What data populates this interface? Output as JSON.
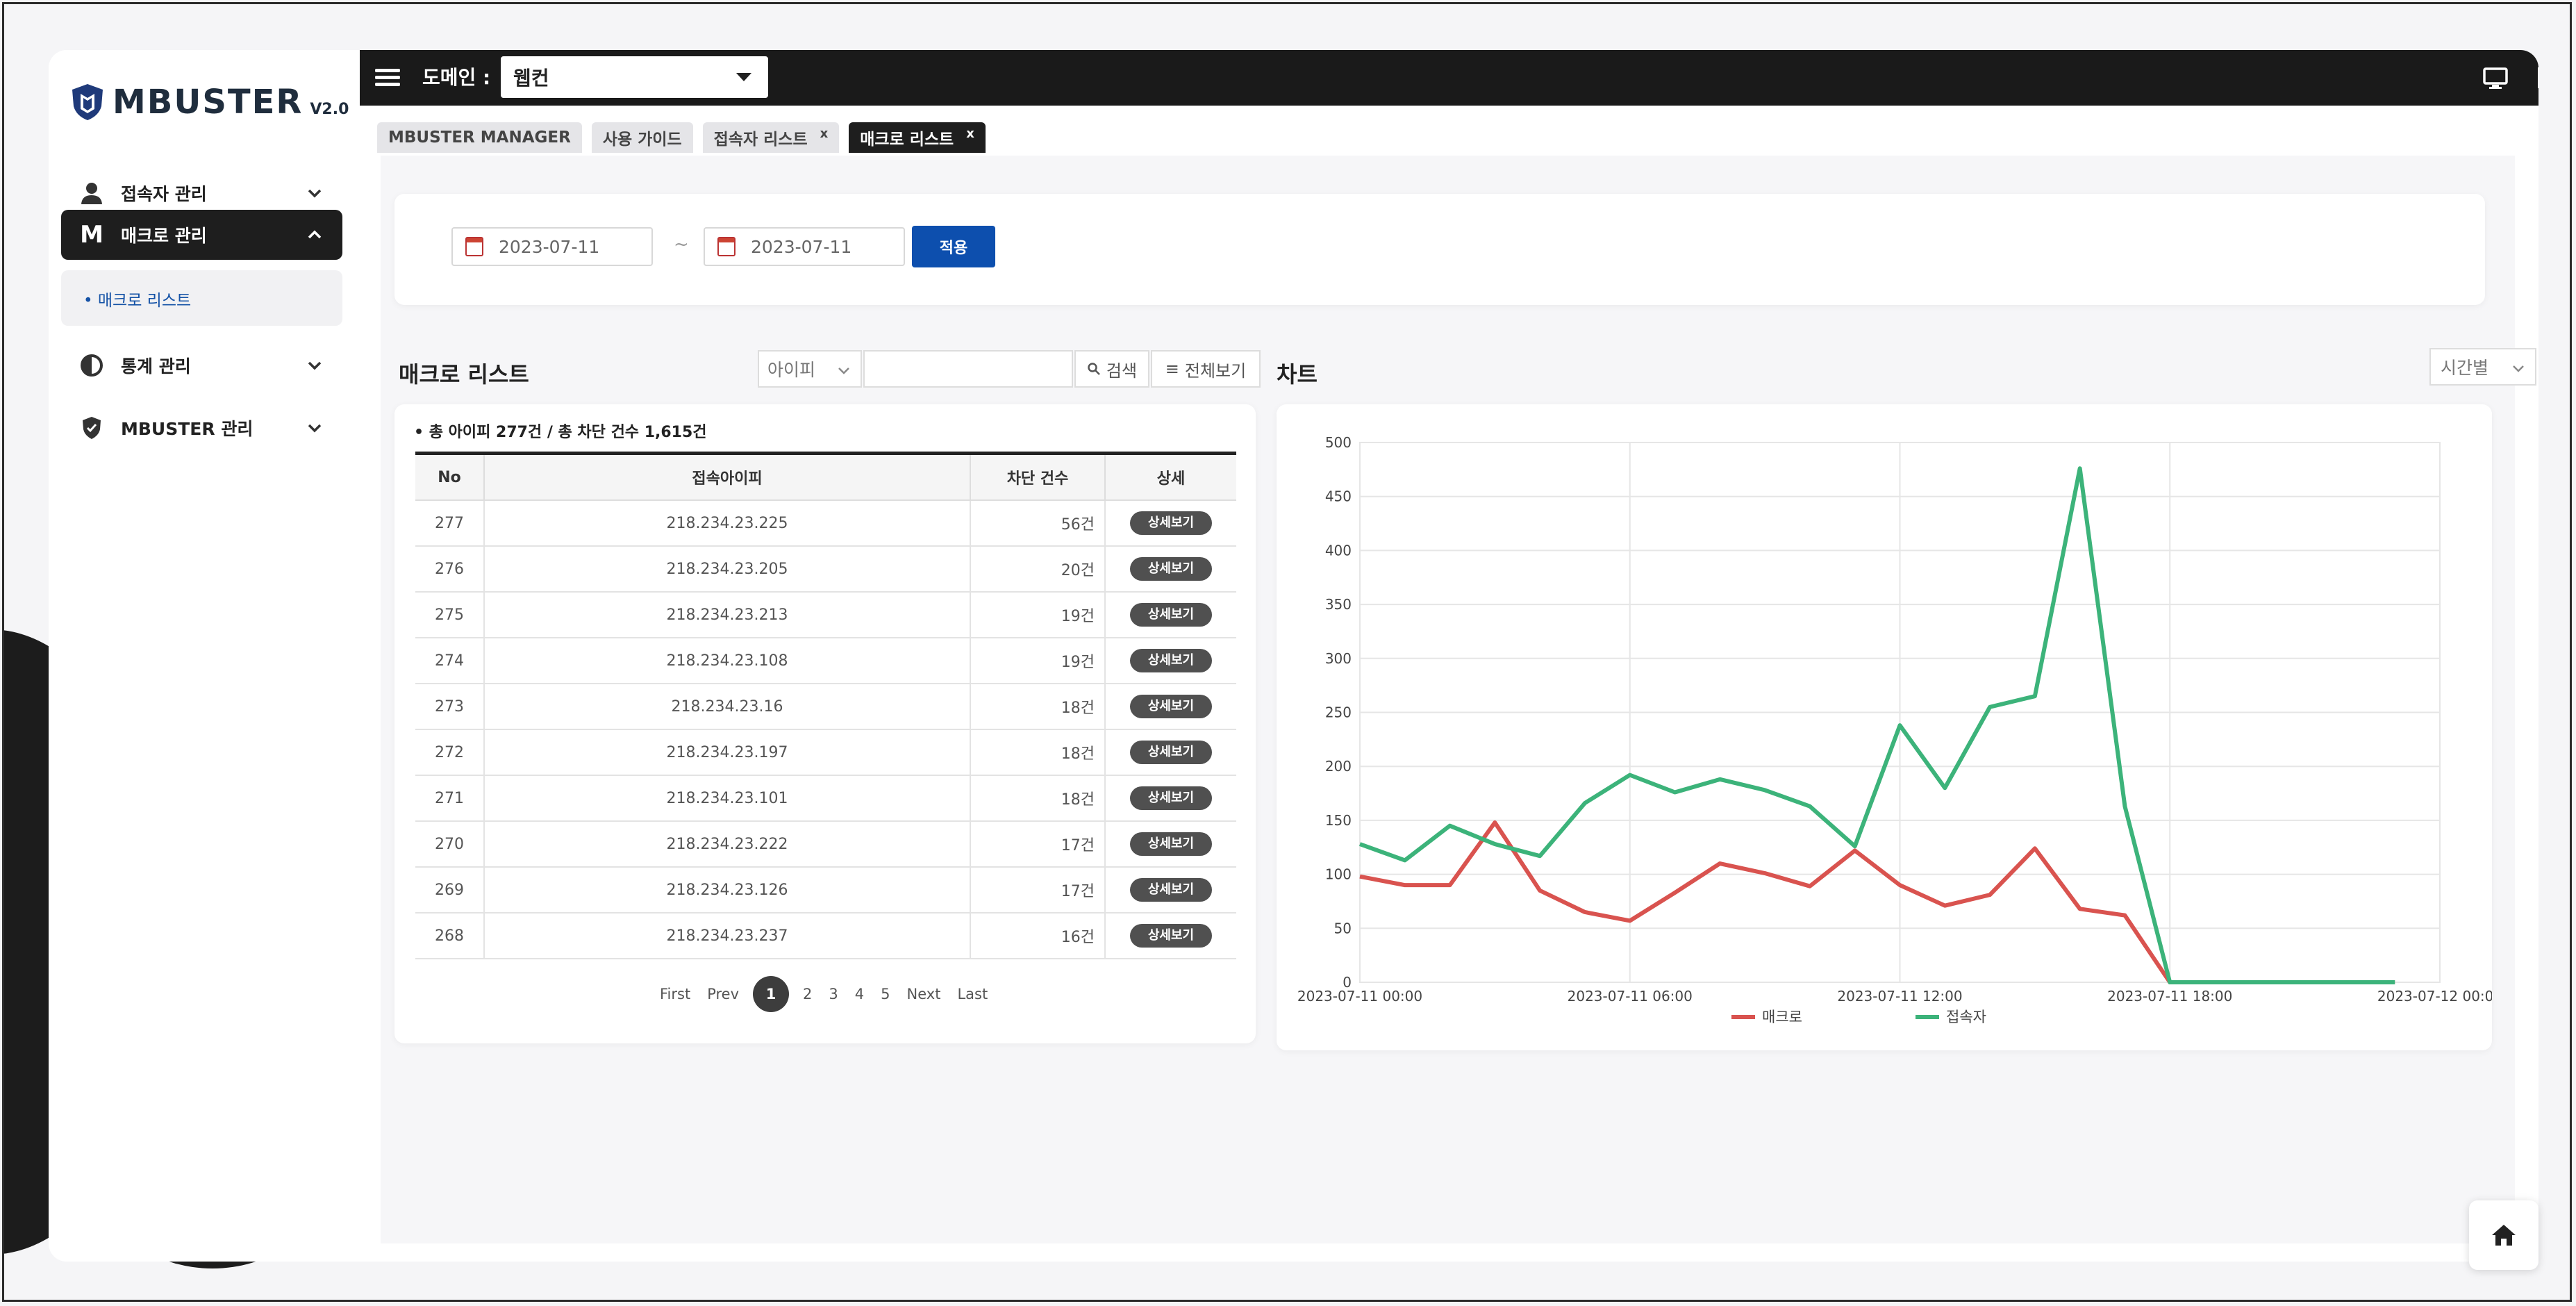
{
  "brand": {
    "name": "MBUSTER",
    "version": "V2.0"
  },
  "sidebar": {
    "items": [
      {
        "label": "접속자 관리",
        "icon": "user-icon",
        "expanded": false
      },
      {
        "label": "매크로 관리",
        "icon": "macro-m-icon",
        "expanded": true,
        "active": true
      },
      {
        "label": "통계 관리",
        "icon": "pie-chart-icon",
        "expanded": false
      },
      {
        "label": "MBUSTER 관리",
        "icon": "shield-icon",
        "expanded": false
      }
    ],
    "submenu": {
      "label": "매크로 리스트"
    }
  },
  "topbar": {
    "domain_label": "도메인 :",
    "domain_value": "웹컨"
  },
  "tabs": [
    {
      "label": "MBUSTER MANAGER",
      "closable": false
    },
    {
      "label": "사용 가이드",
      "closable": false
    },
    {
      "label": "접속자 리스트",
      "closable": true
    },
    {
      "label": "매크로 리스트",
      "closable": true,
      "active": true
    }
  ],
  "filter": {
    "start_date": "2023-07-11",
    "end_date": "2023-07-11",
    "separator": "~",
    "apply_label": "적용"
  },
  "list": {
    "title": "매크로 리스트",
    "search_type": "아이피",
    "search_placeholder": "",
    "search_label": "검색",
    "view_all_label": "전체보기",
    "summary": "총 아이피 277건 / 총 차단 건수 1,615건",
    "columns": [
      "No",
      "접속아이피",
      "차단 건수",
      "상세"
    ],
    "detail_label": "상세보기",
    "rows": [
      {
        "no": "277",
        "ip": "218.234.23.225",
        "count": "56건"
      },
      {
        "no": "276",
        "ip": "218.234.23.205",
        "count": "20건"
      },
      {
        "no": "275",
        "ip": "218.234.23.213",
        "count": "19건"
      },
      {
        "no": "274",
        "ip": "218.234.23.108",
        "count": "19건"
      },
      {
        "no": "273",
        "ip": "218.234.23.16",
        "count": "18건"
      },
      {
        "no": "272",
        "ip": "218.234.23.197",
        "count": "18건"
      },
      {
        "no": "271",
        "ip": "218.234.23.101",
        "count": "18건"
      },
      {
        "no": "270",
        "ip": "218.234.23.222",
        "count": "17건"
      },
      {
        "no": "269",
        "ip": "218.234.23.126",
        "count": "17건"
      },
      {
        "no": "268",
        "ip": "218.234.23.237",
        "count": "16건"
      }
    ],
    "pagination": {
      "first": "First",
      "prev": "Prev",
      "pages": [
        "1",
        "2",
        "3",
        "4",
        "5"
      ],
      "current": "1",
      "next": "Next",
      "last": "Last"
    }
  },
  "chart_panel": {
    "title": "차트",
    "interval": "시간별"
  },
  "chart_data": {
    "type": "line",
    "xlabel": "",
    "ylabel": "",
    "ylim": [
      0,
      500
    ],
    "yticks": [
      0,
      50,
      100,
      150,
      200,
      250,
      300,
      350,
      400,
      450,
      500
    ],
    "xlim_hours": [
      0,
      24
    ],
    "xtick_labels": [
      "2023-07-11 00:00",
      "2023-07-11 06:00",
      "2023-07-11 12:00",
      "2023-07-11 18:00",
      "2023-07-12 00:00"
    ],
    "grid": true,
    "legend": "bottom-center",
    "x_hours": [
      0,
      1,
      2,
      3,
      4,
      5,
      6,
      7,
      8,
      9,
      10,
      11,
      12,
      13,
      14,
      15,
      16,
      17,
      18,
      19,
      20,
      21,
      22,
      23
    ],
    "series": [
      {
        "name": "매크로",
        "color": "#d9534f",
        "values": [
          98,
          90,
          90,
          148,
          85,
          65,
          57,
          83,
          110,
          101,
          89,
          122,
          90,
          71,
          81,
          124,
          68,
          62,
          0,
          0,
          0,
          0,
          0,
          0
        ]
      },
      {
        "name": "접속자",
        "color": "#3cb37a",
        "values": [
          128,
          113,
          145,
          128,
          117,
          166,
          192,
          176,
          188,
          178,
          163,
          126,
          238,
          180,
          255,
          265,
          476,
          163,
          0,
          0,
          0,
          0,
          0,
          0
        ]
      }
    ]
  }
}
